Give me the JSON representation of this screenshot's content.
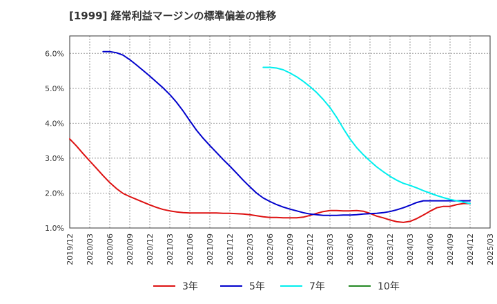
{
  "chart_data": {
    "type": "line",
    "title": "[1999]  経常利益マージンの標準偏差の推移",
    "xlabel": "",
    "ylabel": "",
    "ylim": [
      1.0,
      6.5
    ],
    "y_ticks": [
      "1.0%",
      "2.0%",
      "3.0%",
      "4.0%",
      "5.0%",
      "6.0%"
    ],
    "x_ticks": [
      "2019/12",
      "2020/03",
      "2020/06",
      "2020/09",
      "2020/12",
      "2021/03",
      "2021/06",
      "2021/09",
      "2021/12",
      "2022/03",
      "2022/06",
      "2022/09",
      "2022/12",
      "2023/03",
      "2023/06",
      "2023/09",
      "2023/12",
      "2024/03",
      "2024/06",
      "2024/09",
      "2024/12",
      "2025/03"
    ],
    "grid": true,
    "legend_position": "bottom",
    "series": [
      {
        "name": "3年",
        "color": "#dd1111",
        "x": [
          "2019/12",
          "2020/01",
          "2020/02",
          "2020/03",
          "2020/04",
          "2020/05",
          "2020/06",
          "2020/07",
          "2020/08",
          "2020/09",
          "2020/10",
          "2020/11",
          "2020/12",
          "2021/01",
          "2021/02",
          "2021/03",
          "2021/04",
          "2021/05",
          "2021/06",
          "2021/07",
          "2021/08",
          "2021/09",
          "2021/10",
          "2021/11",
          "2021/12",
          "2022/01",
          "2022/02",
          "2022/03",
          "2022/04",
          "2022/05",
          "2022/06",
          "2022/07",
          "2022/08",
          "2022/09",
          "2022/10",
          "2022/11",
          "2022/12",
          "2023/01",
          "2023/02",
          "2023/03",
          "2023/04",
          "2023/05",
          "2023/06",
          "2023/07",
          "2023/08",
          "2023/09",
          "2023/10",
          "2023/11",
          "2023/12",
          "2024/01",
          "2024/02",
          "2024/03",
          "2024/04",
          "2024/05",
          "2024/06",
          "2024/07",
          "2024/08",
          "2024/09",
          "2024/10",
          "2024/11",
          "2024/12"
        ],
        "values": [
          3.55,
          3.35,
          3.13,
          2.92,
          2.71,
          2.5,
          2.3,
          2.13,
          1.99,
          1.9,
          1.82,
          1.74,
          1.66,
          1.59,
          1.53,
          1.49,
          1.46,
          1.44,
          1.43,
          1.43,
          1.43,
          1.43,
          1.43,
          1.42,
          1.42,
          1.41,
          1.4,
          1.38,
          1.35,
          1.32,
          1.3,
          1.3,
          1.29,
          1.29,
          1.29,
          1.31,
          1.36,
          1.42,
          1.47,
          1.5,
          1.5,
          1.49,
          1.49,
          1.5,
          1.48,
          1.42,
          1.34,
          1.29,
          1.23,
          1.18,
          1.16,
          1.19,
          1.27,
          1.37,
          1.48,
          1.58,
          1.62,
          1.62,
          1.67,
          1.7,
          1.7
        ]
      },
      {
        "name": "5年",
        "color": "#0000cc",
        "x": [
          "2020/05",
          "2020/06",
          "2020/07",
          "2020/08",
          "2020/09",
          "2020/10",
          "2020/11",
          "2020/12",
          "2021/01",
          "2021/02",
          "2021/03",
          "2021/04",
          "2021/05",
          "2021/06",
          "2021/07",
          "2021/08",
          "2021/09",
          "2021/10",
          "2021/11",
          "2021/12",
          "2022/01",
          "2022/02",
          "2022/03",
          "2022/04",
          "2022/05",
          "2022/06",
          "2022/07",
          "2022/08",
          "2022/09",
          "2022/10",
          "2022/11",
          "2022/12",
          "2023/01",
          "2023/02",
          "2023/03",
          "2023/04",
          "2023/05",
          "2023/06",
          "2023/07",
          "2023/08",
          "2023/09",
          "2023/10",
          "2023/11",
          "2023/12",
          "2024/01",
          "2024/02",
          "2024/03",
          "2024/04",
          "2024/05",
          "2024/06",
          "2024/07",
          "2024/08",
          "2024/09",
          "2024/10",
          "2024/11",
          "2024/12"
        ],
        "values": [
          6.05,
          6.05,
          6.02,
          5.95,
          5.82,
          5.67,
          5.51,
          5.35,
          5.18,
          5.01,
          4.82,
          4.6,
          4.35,
          4.07,
          3.8,
          3.57,
          3.36,
          3.16,
          2.96,
          2.77,
          2.57,
          2.37,
          2.18,
          2.0,
          1.86,
          1.76,
          1.67,
          1.6,
          1.54,
          1.49,
          1.44,
          1.4,
          1.38,
          1.36,
          1.36,
          1.36,
          1.37,
          1.37,
          1.38,
          1.4,
          1.41,
          1.42,
          1.44,
          1.47,
          1.52,
          1.58,
          1.65,
          1.73,
          1.78,
          1.78,
          1.78,
          1.78,
          1.78,
          1.78,
          1.78,
          1.78
        ]
      },
      {
        "name": "7年",
        "color": "#00eeee",
        "x": [
          "2022/05",
          "2022/06",
          "2022/07",
          "2022/08",
          "2022/09",
          "2022/10",
          "2022/11",
          "2022/12",
          "2023/01",
          "2023/02",
          "2023/03",
          "2023/04",
          "2023/05",
          "2023/06",
          "2023/07",
          "2023/08",
          "2023/09",
          "2023/10",
          "2023/11",
          "2023/12",
          "2024/01",
          "2024/02",
          "2024/03",
          "2024/04",
          "2024/05",
          "2024/06",
          "2024/07",
          "2024/08",
          "2024/09",
          "2024/10",
          "2024/11",
          "2024/12"
        ],
        "values": [
          5.6,
          5.6,
          5.58,
          5.53,
          5.44,
          5.33,
          5.2,
          5.05,
          4.88,
          4.68,
          4.45,
          4.17,
          3.85,
          3.55,
          3.3,
          3.1,
          2.92,
          2.75,
          2.61,
          2.48,
          2.37,
          2.28,
          2.22,
          2.15,
          2.07,
          2.0,
          1.93,
          1.87,
          1.82,
          1.78,
          1.74,
          1.7
        ]
      },
      {
        "name": "10年",
        "color": "#228822",
        "x": [],
        "values": []
      }
    ]
  }
}
